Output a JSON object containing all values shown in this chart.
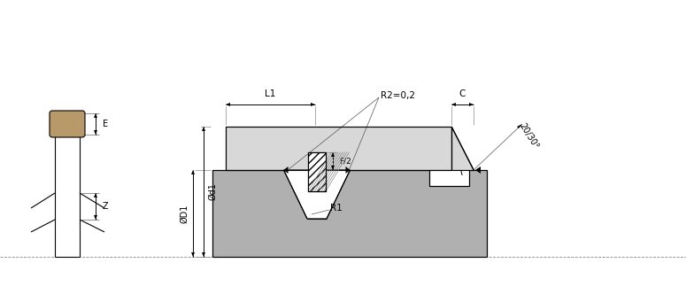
{
  "bg_color": "#ffffff",
  "line_color": "#000000",
  "gray_dark": "#b0b0b0",
  "gray_light": "#d8d8d8",
  "tan_color": "#b8996a",
  "fig_width": 7.75,
  "fig_height": 3.32,
  "annotations": {
    "L1": "L1",
    "R2": "R2=0,2",
    "C": "C",
    "E": "E",
    "Z": "Z",
    "F2": "F/2",
    "D1": "ØD1",
    "d1": "Ød1",
    "R1": "R1",
    "angle": "20/30°"
  }
}
